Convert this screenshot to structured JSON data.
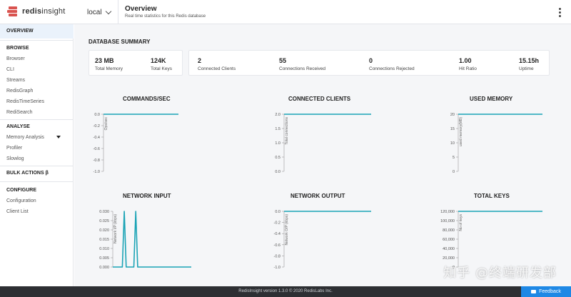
{
  "app": {
    "name_prefix": "redis",
    "name_suffix": "insight"
  },
  "header": {
    "database": "local",
    "title": "Overview",
    "subtitle": "Real time statistics for this Redis database"
  },
  "sidebar": {
    "overview": "OVERVIEW",
    "browse_head": "BROWSE",
    "browse": [
      "Browser",
      "CLI",
      "Streams",
      "RedisGraph",
      "RedisTimeSeries",
      "RediSearch"
    ],
    "analyse_head": "ANALYSE",
    "analyse": [
      "Memory Analysis",
      "Profiler",
      "Slowlog"
    ],
    "bulk": "BULK ACTIONS β",
    "configure_head": "CONFIGURE",
    "configure": [
      "Configuration",
      "Client List"
    ]
  },
  "summary": {
    "title": "DATABASE SUMMARY",
    "memory": {
      "value": "23 MB",
      "label": "Total Memory"
    },
    "keys": {
      "value": "124K",
      "label": "Total Keys"
    },
    "clients": {
      "value": "2",
      "label": "Connected Clients"
    },
    "received": {
      "value": "55",
      "label": "Connections Received"
    },
    "rejected": {
      "value": "0",
      "label": "Connections Rejected"
    },
    "hit_ratio": {
      "value": "1.00",
      "label": "Hit Ratio"
    },
    "uptime": {
      "value": "15.15h",
      "label": "Uptime"
    }
  },
  "colors": {
    "line": "#1aa3b5",
    "accent": "#1e88e5",
    "footer": "#2d2f33"
  },
  "chart_data": [
    {
      "type": "line",
      "title": "COMMANDS/SEC",
      "ylabel": "Ops/sec",
      "yticks": [
        "0.0",
        "-0.2",
        "-0.4",
        "-0.6",
        "-0.8",
        "-1.0"
      ],
      "ylim": [
        -1.0,
        0.0
      ],
      "series": [
        {
          "values": [
            0,
            0,
            0,
            0,
            0,
            0,
            0,
            0,
            0,
            0
          ]
        }
      ]
    },
    {
      "type": "line",
      "title": "CONNECTED CLIENTS",
      "ylabel": "Total connections",
      "yticks": [
        "2.0",
        "1.5",
        "1.0",
        "0.5",
        "0.0"
      ],
      "ylim": [
        0,
        2.0
      ],
      "series": [
        {
          "values": [
            2,
            2,
            2,
            2,
            2,
            2,
            2,
            2,
            2,
            2
          ]
        }
      ]
    },
    {
      "type": "line",
      "title": "USED MEMORY",
      "ylabel": "used memory(MB)",
      "yticks": [
        "20",
        "15",
        "10",
        "5",
        "0"
      ],
      "ylim": [
        0,
        23
      ],
      "series": [
        {
          "values": [
            23,
            23,
            23,
            23,
            23,
            23,
            23,
            23,
            23,
            23
          ]
        }
      ]
    },
    {
      "type": "line",
      "title": "NETWORK INPUT",
      "ylabel": "Network I/P (kbps)",
      "yticks": [
        "0.030",
        "0.025",
        "0.020",
        "0.015",
        "0.010",
        "0.005",
        "0.000"
      ],
      "ylim": [
        0,
        0.03
      ],
      "series": [
        {
          "values": [
            0,
            0,
            0,
            0,
            0,
            0,
            0.03,
            0,
            0,
            0,
            0,
            0,
            0.03,
            0,
            0,
            0,
            0,
            0,
            0,
            0,
            0,
            0,
            0,
            0,
            0,
            0,
            0,
            0,
            0,
            0,
            0,
            0,
            0,
            0,
            0,
            0,
            0,
            0,
            0,
            0,
            0,
            0
          ]
        }
      ]
    },
    {
      "type": "line",
      "title": "NETWORK OUTPUT",
      "ylabel": "Network O/P (kbps)",
      "yticks": [
        "0.0",
        "-0.2",
        "-0.4",
        "-0.6",
        "-0.8",
        "-1.0"
      ],
      "ylim": [
        -1.0,
        0.0
      ],
      "series": [
        {
          "values": [
            0,
            0,
            0,
            0,
            0,
            0,
            0,
            0,
            0,
            0
          ]
        }
      ]
    },
    {
      "type": "line",
      "title": "TOTAL KEYS",
      "ylabel": "No of keys",
      "yticks": [
        "120,000",
        "100,000",
        "80,000",
        "60,000",
        "40,000",
        "20,000",
        "0"
      ],
      "ylim": [
        0,
        124000
      ],
      "series": [
        {
          "values": [
            124000,
            124000,
            124000,
            124000,
            124000,
            124000,
            124000,
            124000,
            124000,
            124000
          ]
        }
      ]
    }
  ],
  "footer": {
    "text": "RedisInsight version 1.3.0 © 2020 RedisLabs Inc.",
    "feedback": "Feedback"
  },
  "watermark": "知乎 @终端研发部"
}
